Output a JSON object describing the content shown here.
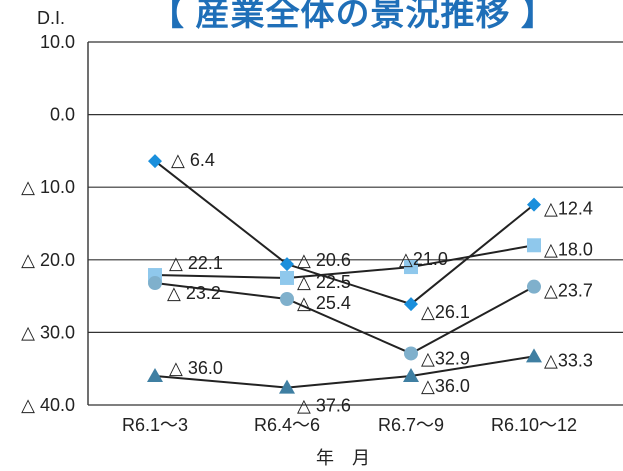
{
  "chart_data": {
    "type": "line",
    "title": "【 産業全体の景況推移 】",
    "ylabel": "D.I.",
    "xlabel": "年　月",
    "categories": [
      "R6.1～3",
      "R6.4～6",
      "R6.7～9",
      "R6.10～12"
    ],
    "y_ticks": [
      {
        "value": 10,
        "label": "10.0"
      },
      {
        "value": 0,
        "label": "0.0"
      },
      {
        "value": -10,
        "label": "△ 10.0"
      },
      {
        "value": -20,
        "label": "△ 20.0"
      },
      {
        "value": -30,
        "label": "△ 30.0"
      },
      {
        "value": -40,
        "label": "△ 40.0"
      }
    ],
    "ylim": [
      -40,
      10
    ],
    "grid": true,
    "series": [
      {
        "values": [
          -6.4,
          -20.6,
          -26.1,
          -12.4
        ],
        "labels": [
          "△ 6.4",
          "△ 20.6",
          "△26.1",
          "△12.4"
        ],
        "marker": "diamond",
        "color": "#1a8fdc"
      },
      {
        "values": [
          -22.1,
          -22.5,
          -21.0,
          -18.0
        ],
        "labels": [
          "△ 22.1",
          "△ 22.5",
          "△21.0",
          "△18.0"
        ],
        "marker": "square",
        "color": "#8fc8ec"
      },
      {
        "values": [
          -23.2,
          -25.4,
          -32.9,
          -23.7
        ],
        "labels": [
          "△ 23.2",
          "△ 25.4",
          "△32.9",
          "△23.7"
        ],
        "marker": "circle",
        "color": "#7fb0cc"
      },
      {
        "values": [
          -36.0,
          -37.6,
          -36.0,
          -33.3
        ],
        "labels": [
          "△ 36.0",
          "△ 37.6",
          "△36.0",
          "△33.3"
        ],
        "marker": "triangle",
        "color": "#3f7fa2"
      }
    ]
  }
}
